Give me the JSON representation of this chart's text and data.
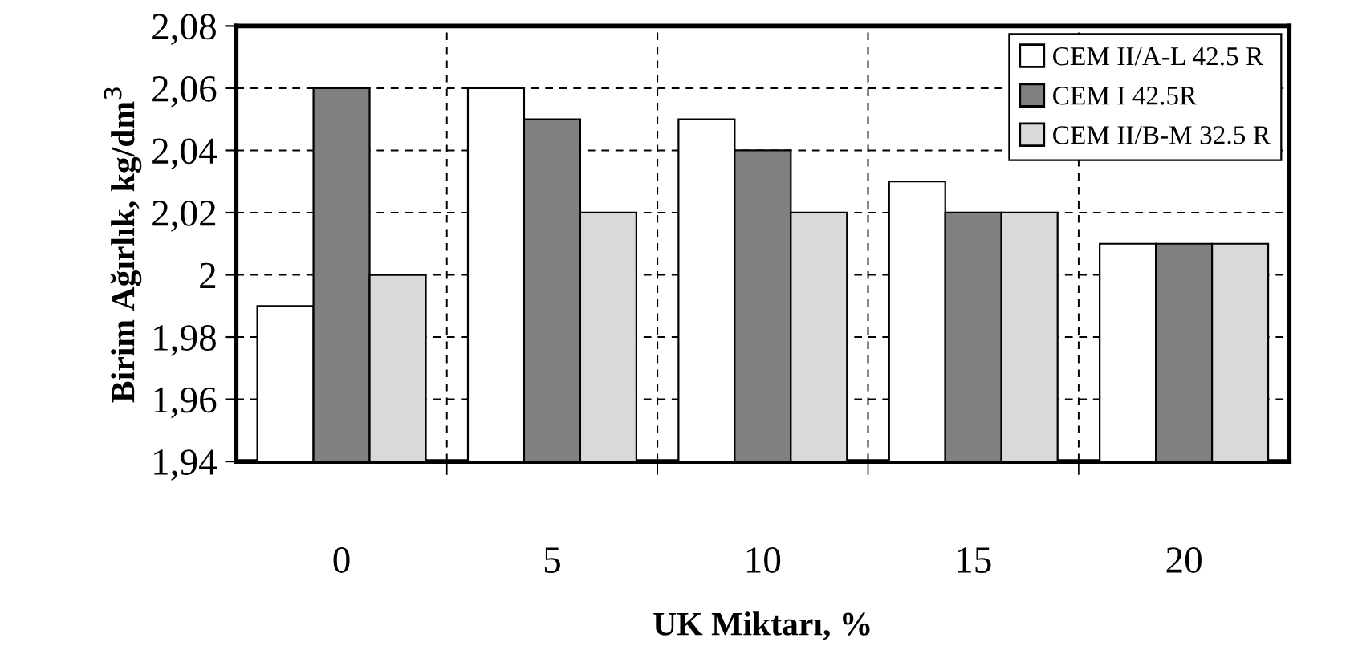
{
  "chart_data": {
    "type": "bar",
    "xlabel": "UK Miktarı, %",
    "ylabel": "Birim Ağırlık, kg/dm$^{3}$",
    "categories": [
      "0",
      "5",
      "10",
      "15",
      "20"
    ],
    "series": [
      {
        "name": "CEM II/A-L 42.5 R",
        "color": "#ffffff",
        "values": [
          1.99,
          2.06,
          2.05,
          2.03,
          2.01
        ]
      },
      {
        "name": "CEM I 42.5R",
        "color": "#808080",
        "values": [
          2.06,
          2.05,
          2.04,
          2.02,
          2.01
        ]
      },
      {
        "name": "CEM II/B-M 32.5 R",
        "color": "#d9d9d9",
        "values": [
          2.0,
          2.02,
          2.02,
          2.02,
          2.01
        ]
      }
    ],
    "ylim": [
      1.94,
      2.08
    ],
    "yticks": [
      {
        "value": 1.94,
        "label": "1,94"
      },
      {
        "value": 1.96,
        "label": "1,96"
      },
      {
        "value": 1.98,
        "label": "1,98"
      },
      2,
      {
        "value": 2.02,
        "label": "2,02"
      },
      {
        "value": 2.04,
        "label": "2,04"
      },
      {
        "value": 2.06,
        "label": "2,06"
      },
      {
        "value": 2.08,
        "label": "2,08"
      }
    ],
    "grid": true,
    "legend": "top right"
  }
}
